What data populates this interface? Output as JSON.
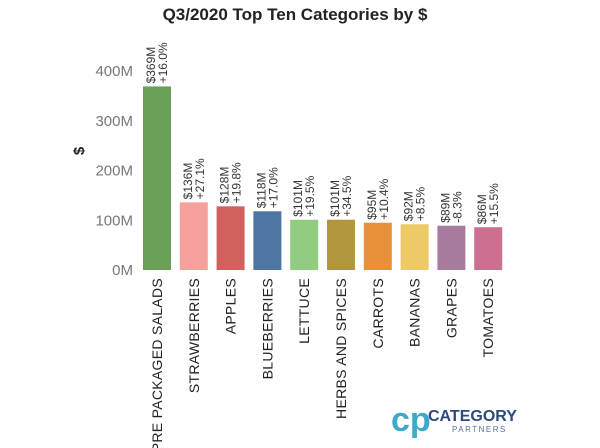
{
  "chart_data": {
    "type": "bar",
    "title": "Q3/2020 Top Ten Categories by $",
    "ylabel": "$",
    "xlabel": "",
    "ylim": [
      0,
      400
    ],
    "yticks": [
      "0M",
      "100M",
      "200M",
      "300M",
      "400M"
    ],
    "ytick_values": [
      0,
      100,
      200,
      300,
      400
    ],
    "grid": false,
    "legend": "none",
    "categories": [
      "PRE PACKAGED SALADS",
      "STRAWBERRIES",
      "APPLES",
      "BLUEBERRIES",
      "LETTUCE",
      "HERBS AND SPICES",
      "CARROTS",
      "BANANAS",
      "GRAPES",
      "TOMATOES"
    ],
    "values": [
      369,
      136,
      128,
      118,
      101,
      101,
      95,
      92,
      89,
      86
    ],
    "value_labels": [
      "$369M",
      "$136M",
      "$128M",
      "$118M",
      "$101M",
      "$101M",
      "$95M",
      "$92M",
      "$89M",
      "$86M"
    ],
    "change_labels": [
      "+16.0%",
      "+27.1%",
      "+19.8%",
      "+17.0%",
      "+19.5%",
      "+34.5%",
      "+10.4%",
      "+8.5%",
      "-8.3%",
      "+15.5%"
    ],
    "colors": [
      "#6a9f58",
      "#f4a09b",
      "#d1605e",
      "#4e76a5",
      "#92cc80",
      "#b0973d",
      "#e8913a",
      "#eec967",
      "#a87c9f",
      "#cc6f90"
    ]
  },
  "logo": {
    "mark": "cp",
    "name": "CATEGORY",
    "sub": "PARTNERS",
    "mark_color": "#3fa9c9",
    "name_color": "#2c4a7a"
  }
}
